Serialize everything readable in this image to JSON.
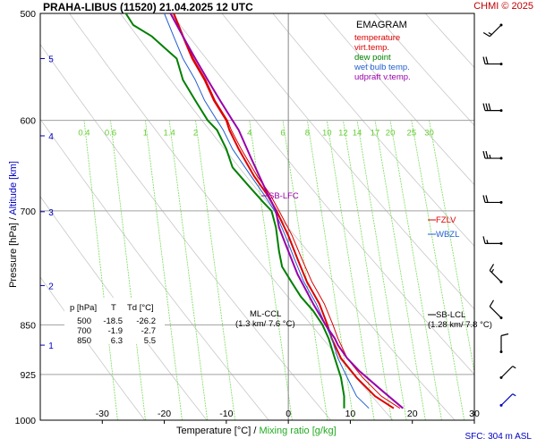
{
  "header": {
    "title": "PRAHA-LIBUS (11520)    21.04.2025 12 UTC",
    "credit": "CHMI © 2025"
  },
  "footer": {
    "sfc": "SFC: 304 m ASL"
  },
  "axes": {
    "xlabel_temp": "Temperature [°C]",
    "xlabel_sep": " / ",
    "xlabel_mix": "Mixing ratio [g/kg]",
    "ylabel_pres": "Pressure [hPa]",
    "ylabel_sep": "  /  ",
    "ylabel_alt": "Altitude [km]"
  },
  "legend": {
    "title": "EMAGRAM",
    "items": [
      {
        "label": "temperature",
        "color": "#dd0000"
      },
      {
        "label": "virt.temp.",
        "color": "#dd0000"
      },
      {
        "label": "dew point",
        "color": "#008000"
      },
      {
        "label": "wet bulb temp.",
        "color": "#2060d0"
      },
      {
        "label": "udpraft v.temp.",
        "color": "#9900aa"
      }
    ]
  },
  "levels_table": {
    "headers": [
      "p [hPa]",
      "T",
      "Td [°C]"
    ],
    "rows": [
      [
        "500",
        "-18.5",
        "-26.2"
      ],
      [
        "700",
        "-1.9",
        "-2.7"
      ],
      [
        "850",
        "6.3",
        "5.5"
      ]
    ]
  },
  "annotations": {
    "sb_lfc": "SB-LFC",
    "fzlv": "FZLV",
    "wbzl": "WBZL",
    "ml_ccl_1": "ML-CCL",
    "ml_ccl_2": "(1.3 km/ 7.6 °C)",
    "sb_lcl_1": "SB-LCL",
    "sb_lcl_2": "(1.28 km/ 7.8 °C)"
  },
  "chart_data": {
    "type": "line",
    "title": "EMAGRAM",
    "xlabel": "Temperature [°C] / Mixing ratio [g/kg]",
    "ylabel": "Pressure [hPa] / Altitude [km]",
    "xlim": [
      -40,
      30
    ],
    "ylim": [
      1000,
      500
    ],
    "y_scale": "log",
    "grid": true,
    "x_ticks": [
      -30,
      -20,
      -10,
      0,
      10,
      20,
      30
    ],
    "y_ticks": [
      500,
      600,
      700,
      850,
      925,
      1000
    ],
    "altitude_ticks": [
      {
        "label": "1",
        "p": 880
      },
      {
        "label": "2",
        "p": 795
      },
      {
        "label": "3",
        "p": 701
      },
      {
        "label": "4",
        "p": 616
      },
      {
        "label": "5",
        "p": 540
      }
    ],
    "mixing_ratio_labels": [
      "0.4",
      "0.6",
      "1",
      "1.4",
      "2",
      "4",
      "6",
      "8",
      "10",
      "12",
      "14",
      "17",
      "20",
      "25",
      "30"
    ],
    "series": [
      {
        "name": "temperature",
        "color": "#dd0000",
        "points": [
          [
            17,
            980
          ],
          [
            14,
            960
          ],
          [
            11,
            930
          ],
          [
            8.5,
            900
          ],
          [
            7,
            870
          ],
          [
            6.3,
            850
          ],
          [
            5,
            820
          ],
          [
            3,
            790
          ],
          [
            1.5,
            760
          ],
          [
            0,
            730
          ],
          [
            -1.9,
            700
          ],
          [
            -3.5,
            680
          ],
          [
            -5.5,
            660
          ],
          [
            -8,
            630
          ],
          [
            -9.5,
            610
          ],
          [
            -10,
            600
          ],
          [
            -12,
            580
          ],
          [
            -13.5,
            560
          ],
          [
            -15.5,
            540
          ],
          [
            -17,
            520
          ],
          [
            -18.5,
            500
          ]
        ]
      },
      {
        "name": "virt.temp.",
        "color": "#dd0000",
        "points": [
          [
            18,
            980
          ],
          [
            15,
            960
          ],
          [
            12,
            930
          ],
          [
            9.5,
            900
          ],
          [
            8,
            870
          ],
          [
            7.2,
            850
          ],
          [
            5.8,
            820
          ],
          [
            3.8,
            790
          ],
          [
            2.2,
            760
          ],
          [
            0.6,
            730
          ],
          [
            -1.5,
            700
          ],
          [
            -3,
            680
          ],
          [
            -5,
            660
          ],
          [
            -7.6,
            630
          ],
          [
            -9.2,
            610
          ],
          [
            -9.8,
            600
          ],
          [
            -11.8,
            580
          ],
          [
            -13.3,
            560
          ],
          [
            -15.3,
            540
          ],
          [
            -16.9,
            520
          ],
          [
            -18.4,
            500
          ]
        ]
      },
      {
        "name": "dew point",
        "color": "#008000",
        "points": [
          [
            9,
            980
          ],
          [
            9,
            960
          ],
          [
            8.5,
            930
          ],
          [
            7.5,
            900
          ],
          [
            6.5,
            870
          ],
          [
            5.5,
            850
          ],
          [
            4,
            830
          ],
          [
            2,
            810
          ],
          [
            0.5,
            790
          ],
          [
            -1,
            770
          ],
          [
            -1.5,
            750
          ],
          [
            -2,
            720
          ],
          [
            -2.7,
            700
          ],
          [
            -4,
            690
          ],
          [
            -6.5,
            670
          ],
          [
            -9,
            650
          ],
          [
            -10,
            630
          ],
          [
            -11.5,
            610
          ],
          [
            -13,
            600
          ],
          [
            -15,
            580
          ],
          [
            -17,
            560
          ],
          [
            -18,
            540
          ],
          [
            -20,
            530
          ],
          [
            -22,
            520
          ],
          [
            -25,
            510
          ],
          [
            -26.2,
            500
          ]
        ]
      },
      {
        "name": "wet bulb temp.",
        "color": "#2060d0",
        "points": [
          [
            13,
            980
          ],
          [
            11,
            960
          ],
          [
            9.5,
            930
          ],
          [
            8,
            900
          ],
          [
            7,
            870
          ],
          [
            6,
            850
          ],
          [
            4.5,
            820
          ],
          [
            2.5,
            790
          ],
          [
            1,
            760
          ],
          [
            -0.5,
            730
          ],
          [
            -2.2,
            700
          ],
          [
            -4,
            680
          ],
          [
            -6,
            660
          ],
          [
            -9,
            630
          ],
          [
            -10.5,
            610
          ],
          [
            -11.5,
            600
          ],
          [
            -13.5,
            580
          ],
          [
            -15,
            560
          ],
          [
            -17,
            540
          ],
          [
            -18.5,
            520
          ],
          [
            -20,
            500
          ]
        ]
      },
      {
        "name": "udpraft v.temp.",
        "color": "#9900aa",
        "points": [
          [
            18.5,
            980
          ],
          [
            15,
            950
          ],
          [
            11.5,
            920
          ],
          [
            9.5,
            900
          ],
          [
            8,
            880
          ],
          [
            7.5,
            870
          ],
          [
            6,
            850
          ],
          [
            4,
            820
          ],
          [
            1.5,
            780
          ],
          [
            -0.5,
            740
          ],
          [
            -1.5,
            720
          ],
          [
            -2,
            700
          ],
          [
            -4,
            670
          ],
          [
            -6,
            640
          ],
          [
            -8,
            610
          ],
          [
            -9,
            600
          ],
          [
            -11,
            580
          ],
          [
            -13,
            560
          ],
          [
            -15,
            540
          ],
          [
            -17,
            520
          ],
          [
            -19,
            500
          ]
        ]
      }
    ],
    "wind_barbs": [
      {
        "p": 510,
        "direction": "SW",
        "knots": 15
      },
      {
        "p": 545,
        "direction": "W",
        "knots": 20
      },
      {
        "p": 590,
        "direction": "W",
        "knots": 30
      },
      {
        "p": 640,
        "direction": "W",
        "knots": 25
      },
      {
        "p": 690,
        "direction": "W",
        "knots": 20
      },
      {
        "p": 740,
        "direction": "W",
        "knots": 15
      },
      {
        "p": 790,
        "direction": "NW",
        "knots": 15
      },
      {
        "p": 840,
        "direction": "NW",
        "knots": 10
      },
      {
        "p": 890,
        "direction": "N",
        "knots": 10
      },
      {
        "p": 930,
        "direction": "NE",
        "knots": 5
      },
      {
        "p": 975,
        "direction": "NE",
        "knots": 5
      }
    ]
  }
}
